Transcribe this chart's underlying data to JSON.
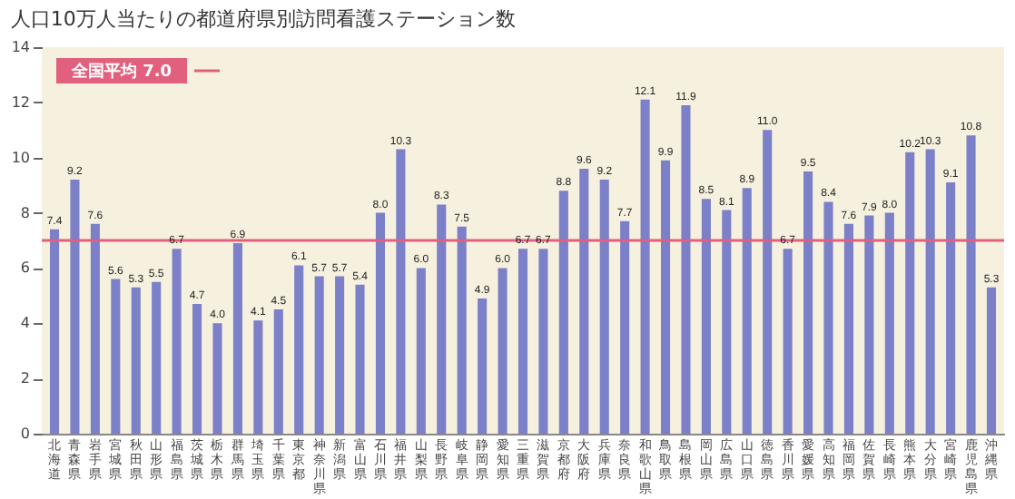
{
  "chart_data": {
    "type": "bar",
    "title": "人口10万人当たりの都道府県別訪問看護ステーション数",
    "categories": [
      "北海道",
      "青森県",
      "岩手県",
      "宮城県",
      "秋田県",
      "山形県",
      "福島県",
      "茨城県",
      "栃木県",
      "群馬県",
      "埼玉県",
      "千葉県",
      "東京都",
      "神奈川県",
      "新潟県",
      "富山県",
      "石川県",
      "福井県",
      "山梨県",
      "長野県",
      "岐阜県",
      "静岡県",
      "愛知県",
      "三重県",
      "滋賀県",
      "京都府",
      "大阪府",
      "兵庫県",
      "奈良県",
      "和歌山県",
      "鳥取県",
      "島根県",
      "岡山県",
      "広島県",
      "山口県",
      "徳島県",
      "香川県",
      "愛媛県",
      "高知県",
      "福岡県",
      "佐賀県",
      "長崎県",
      "熊本県",
      "大分県",
      "宮崎県",
      "鹿児島県",
      "沖縄県"
    ],
    "values": [
      7.4,
      9.2,
      7.6,
      5.6,
      5.3,
      5.5,
      6.7,
      4.7,
      4.0,
      6.9,
      4.1,
      4.5,
      6.1,
      5.7,
      5.7,
      5.4,
      8.0,
      10.3,
      6.0,
      8.3,
      7.5,
      4.9,
      6.0,
      6.7,
      6.7,
      8.8,
      9.6,
      9.2,
      7.7,
      12.1,
      9.9,
      11.9,
      8.5,
      8.1,
      8.9,
      11.0,
      6.7,
      9.5,
      8.4,
      7.6,
      7.9,
      8.0,
      10.2,
      10.3,
      9.1,
      10.8,
      5.3
    ],
    "value_labels": [
      "7.4",
      "9.2",
      "7.6",
      "5.6",
      "5.3",
      "5.5",
      "6.7",
      "4.7",
      "4.0",
      "6.9",
      "4.1",
      "4.5",
      "6.1",
      "5.7",
      "5.7",
      "5.4",
      "8.0",
      "10.3",
      "6.0",
      "8.3",
      "7.5",
      "4.9",
      "6.0",
      "6.7",
      "6.7",
      "8.8",
      "9.6",
      "9.2",
      "7.7",
      "12.1",
      "9.9",
      "11.9",
      "8.5",
      "8.1",
      "8.9",
      "11.0",
      "6.7",
      "9.5",
      "8.4",
      "7.6",
      "7.9",
      "8.0",
      "10.2",
      "10.3",
      "9.1",
      "10.8",
      "5.3"
    ],
    "color": "#7b80c8",
    "ylim": [
      0,
      14
    ],
    "yticks": [
      0,
      2,
      4,
      6,
      8,
      10,
      12,
      14
    ],
    "ref_lines": [
      {
        "axis": "y",
        "value": 7.0,
        "label": "全国平均 7.0",
        "color": "#e0607e"
      }
    ]
  }
}
